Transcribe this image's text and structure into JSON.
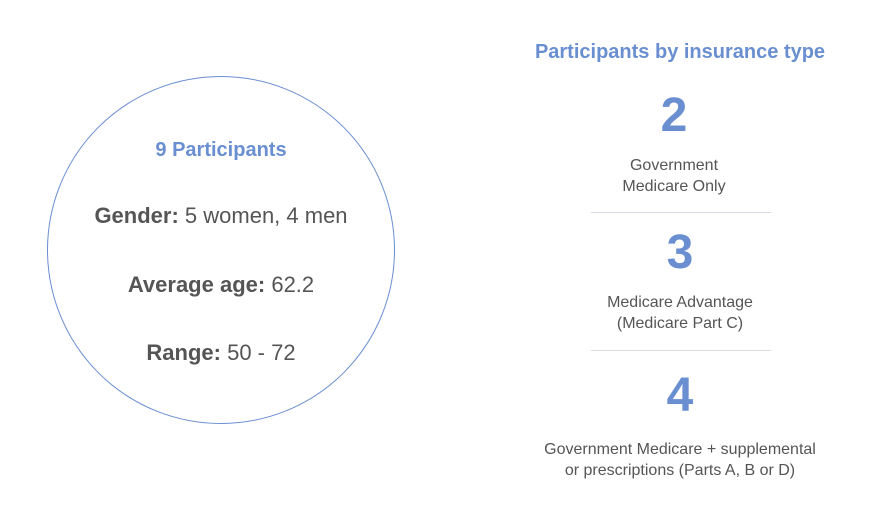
{
  "summary": {
    "title": "9 Participants",
    "gender_label": "Gender:",
    "gender_value": " 5 women, 4 men",
    "age_label": "Average age:",
    "age_value": " 62.2",
    "range_label": "Range:",
    "range_value": " 50 - 72"
  },
  "insurance": {
    "title": "Participants by insurance type",
    "items": [
      {
        "count": "2",
        "line1": "Government",
        "line2": "Medicare Only"
      },
      {
        "count": "3",
        "line1": "Medicare Advantage",
        "line2": "(Medicare Part C)"
      },
      {
        "count": "4",
        "line1": "Government Medicare + supplemental",
        "line2": "or prescriptions (Parts A, B or D)"
      }
    ]
  },
  "colors": {
    "accent": "#6a8fd1",
    "text": "#555555",
    "divider": "#d7dce6"
  }
}
